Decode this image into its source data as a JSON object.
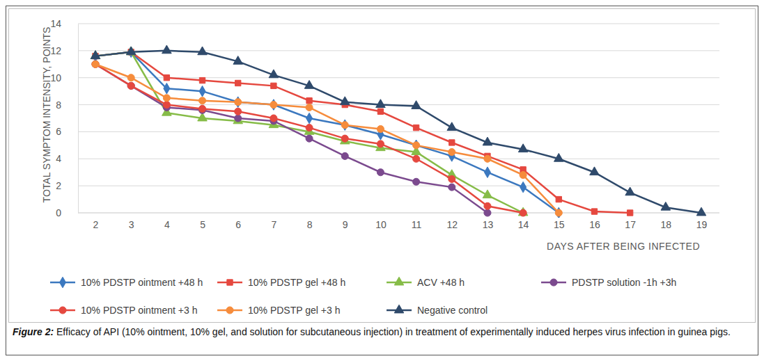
{
  "chart_data": {
    "type": "line",
    "title": "Figure 2:",
    "subtitle": "Efficacy of API (10% ointment, 10% gel, and solution for subcutaneous injection) in treatment of experimentally induced herpes virus infection in guinea pigs.",
    "x_label": "DAYS AFTER BEING INFECTED",
    "y_label": "TOTAL SYMPTOM INTENSITY, POINTS",
    "categories": [
      2,
      3,
      4,
      5,
      6,
      7,
      8,
      9,
      10,
      11,
      12,
      13,
      14,
      15,
      16,
      17,
      18,
      19
    ],
    "ylim": [
      0,
      14
    ],
    "yticks": [
      0,
      2,
      4,
      6,
      8,
      10,
      12,
      14
    ],
    "grid": true,
    "legend": "bottom",
    "series": [
      {
        "name": "10% PDSTP ointment +48 h",
        "color": "#3b78bf",
        "marker": "diamond",
        "values": [
          11.6,
          11.9,
          9.2,
          9.0,
          8.2,
          8.0,
          7.0,
          6.5,
          5.8,
          5.0,
          4.2,
          3.0,
          1.9,
          0.0,
          null,
          null,
          null,
          null
        ]
      },
      {
        "name": "10% PDSTP gel +48 h",
        "color": "#e5483f",
        "marker": "square",
        "values": [
          11.6,
          11.9,
          10.0,
          9.8,
          9.6,
          9.4,
          8.3,
          8.0,
          7.5,
          6.3,
          5.2,
          4.2,
          3.2,
          1.0,
          0.1,
          0.0,
          null,
          null
        ]
      },
      {
        "name": "ACV +48 h",
        "color": "#86bc48",
        "marker": "triangle",
        "values": [
          11.6,
          11.9,
          7.4,
          7.0,
          6.8,
          6.5,
          6.0,
          5.3,
          4.8,
          4.5,
          2.8,
          1.3,
          0.0,
          null,
          null,
          null,
          null,
          null
        ]
      },
      {
        "name": "PDSTP solution -1h +3h",
        "color": "#7b4a8e",
        "marker": "circle",
        "values": [
          11.0,
          9.4,
          7.8,
          7.6,
          7.0,
          6.8,
          5.5,
          4.2,
          3.0,
          2.3,
          1.9,
          0.0,
          null,
          null,
          null,
          null,
          null,
          null
        ]
      },
      {
        "name": "10% PDSTP ointment +3 h",
        "color": "#e5483f",
        "marker": "circle",
        "values": [
          11.0,
          9.4,
          8.0,
          7.7,
          7.5,
          7.0,
          6.3,
          5.5,
          5.1,
          4.0,
          2.5,
          0.5,
          0.0,
          null,
          null,
          null,
          null,
          null
        ]
      },
      {
        "name": "10% PDSTP gel +3 h",
        "color": "#f68c3c",
        "marker": "circle",
        "values": [
          11.0,
          10.0,
          8.5,
          8.3,
          8.2,
          8.0,
          7.8,
          6.5,
          6.2,
          5.0,
          4.5,
          4.0,
          2.8,
          0.0,
          null,
          null,
          null,
          null
        ]
      },
      {
        "name": "Negative control",
        "color": "#2f4a6b",
        "marker": "triangle",
        "values": [
          11.6,
          11.9,
          12.0,
          11.9,
          11.2,
          10.2,
          9.4,
          8.2,
          8.0,
          7.9,
          6.3,
          5.2,
          4.7,
          4.0,
          3.0,
          1.5,
          0.4,
          0.0
        ]
      }
    ]
  }
}
